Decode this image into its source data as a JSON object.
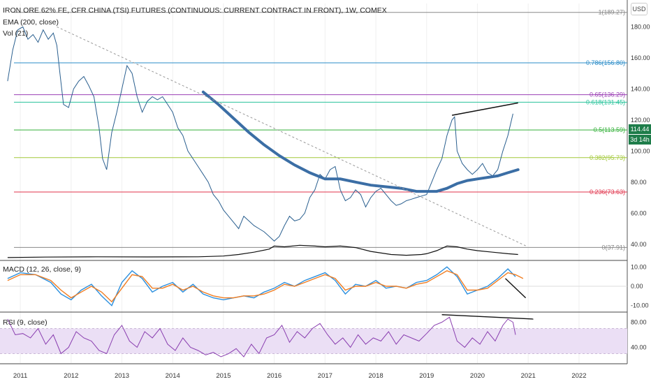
{
  "header": {
    "title": "IRON ORE 62% FE, CFR CHINA (TSI) FUTURES (CONTINUOUS: CURRENT CONTRACT IN FRONT), 1W, COMEX",
    "ema_label": "EMA (200, close)",
    "vol_label": "Vol (21)",
    "macd_label": "MACD (12, 26, close, 9)",
    "rsi_label": "RSI (9, close)",
    "currency": "USD"
  },
  "price_tag": {
    "value": "114.44",
    "countdown": "3d 14h",
    "color": "#1e7d4a"
  },
  "chart_data": [
    {
      "type": "line",
      "panel": "price",
      "ylim": [
        30,
        195
      ],
      "y_ticks": [
        "40.00",
        "60.00",
        "80.00",
        "100.00",
        "120.00",
        "140.00",
        "160.00",
        "180.00"
      ],
      "x_ticks": [
        "2011",
        "2012",
        "2013",
        "2014",
        "2015",
        "2016",
        "2017",
        "2018",
        "2019",
        "2020",
        "2021",
        "2022"
      ],
      "xlim": [
        2010.6,
        2022.95
      ],
      "fib_levels": [
        {
          "label": "1(189.27)",
          "value": 189.27,
          "color": "#888888"
        },
        {
          "label": "0.786(156.80)",
          "value": 156.8,
          "color": "#2a8cc8"
        },
        {
          "label": "0.65(136.29)",
          "value": 136.29,
          "color": "#9b3fb5"
        },
        {
          "label": "0.618(131.45)",
          "value": 131.45,
          "color": "#26c39a"
        },
        {
          "label": "0.5(113.59)",
          "value": 113.59,
          "color": "#34b13a"
        },
        {
          "label": "0.382(95.73)",
          "value": 95.73,
          "color": "#a3c93a"
        },
        {
          "label": "0.236(73.63)",
          "value": 73.63,
          "color": "#e0334b"
        },
        {
          "label": "0(37.91)",
          "value": 37.91,
          "color": "#888888"
        }
      ],
      "series": [
        {
          "type": "line",
          "color": "#2a5f8f",
          "x": [
            2010.75,
            2010.85,
            2010.95,
            2011.05,
            2011.15,
            2011.25,
            2011.35,
            2011.45,
            2011.55,
            2011.65,
            2011.72,
            2011.78,
            2011.85,
            2011.95,
            2012.05,
            2012.15,
            2012.25,
            2012.35,
            2012.45,
            2012.55,
            2012.62,
            2012.7,
            2012.8,
            2012.9,
            2013.0,
            2013.1,
            2013.2,
            2013.3,
            2013.4,
            2013.5,
            2013.6,
            2013.7,
            2013.8,
            2013.9,
            2014.0,
            2014.1,
            2014.2,
            2014.3,
            2014.4,
            2014.5,
            2014.6,
            2014.7,
            2014.8,
            2014.9,
            2015.0,
            2015.1,
            2015.2,
            2015.3,
            2015.4,
            2015.5,
            2015.6,
            2015.7,
            2015.8,
            2015.9,
            2016.0,
            2016.1,
            2016.2,
            2016.3,
            2016.4,
            2016.5,
            2016.6,
            2016.7,
            2016.8,
            2016.9,
            2017.0,
            2017.1,
            2017.2,
            2017.3,
            2017.4,
            2017.5,
            2017.6,
            2017.7,
            2017.8,
            2017.9,
            2018.0,
            2018.1,
            2018.2,
            2018.3,
            2018.4,
            2018.5,
            2018.6,
            2018.7,
            2018.8,
            2018.9,
            2019.0,
            2019.1,
            2019.2,
            2019.3,
            2019.4,
            2019.5,
            2019.55,
            2019.6,
            2019.7,
            2019.8,
            2019.9,
            2020.0,
            2020.1,
            2020.2,
            2020.3,
            2020.4,
            2020.5,
            2020.6,
            2020.7
          ],
          "y": [
            145,
            165,
            178,
            180,
            172,
            175,
            170,
            178,
            172,
            176,
            168,
            150,
            130,
            128,
            140,
            145,
            148,
            142,
            135,
            115,
            95,
            88,
            112,
            125,
            140,
            155,
            150,
            135,
            125,
            132,
            135,
            133,
            135,
            130,
            125,
            115,
            110,
            100,
            95,
            90,
            85,
            80,
            72,
            68,
            62,
            58,
            54,
            50,
            58,
            55,
            52,
            50,
            48,
            45,
            42,
            45,
            52,
            58,
            55,
            56,
            60,
            70,
            75,
            85,
            82,
            88,
            90,
            75,
            68,
            70,
            75,
            72,
            64,
            70,
            74,
            76,
            72,
            68,
            65,
            66,
            68,
            69,
            70,
            71,
            72,
            80,
            88,
            95,
            110,
            120,
            122,
            100,
            92,
            88,
            85,
            88,
            92,
            86,
            84,
            88,
            100,
            110,
            124
          ]
        },
        {
          "type": "ema",
          "label": "EMA (200, close)",
          "color": "#3b6ea5",
          "x": [
            2014.6,
            2014.9,
            2015.2,
            2015.5,
            2015.8,
            2016.1,
            2016.4,
            2016.7,
            2017.0,
            2017.3,
            2017.6,
            2017.9,
            2018.2,
            2018.5,
            2018.8,
            2019.0,
            2019.2,
            2019.4,
            2019.6,
            2019.8,
            2020.0,
            2020.2,
            2020.4,
            2020.6,
            2020.8
          ],
          "y": [
            138,
            130,
            121,
            112,
            104,
            97,
            91,
            86,
            82,
            82,
            80,
            78,
            77,
            76,
            74,
            74,
            74,
            76,
            79,
            81,
            82,
            83,
            84,
            86,
            88
          ]
        },
        {
          "type": "trendline",
          "color": "#999999",
          "dashed": true,
          "x": [
            2011.72,
            2020.95
          ],
          "y": [
            180,
            39
          ]
        },
        {
          "type": "trendline",
          "color": "#111111",
          "x": [
            2019.5,
            2020.8
          ],
          "y": [
            123,
            131
          ]
        },
        {
          "type": "volume_ma",
          "label": "Vol (21)",
          "color": "#111111",
          "x": [
            2010.75,
            2011.5,
            2012.5,
            2013.5,
            2014.5,
            2015.0,
            2015.3,
            2015.6,
            2015.9,
            2016.0,
            2016.2,
            2016.5,
            2016.8,
            2017.0,
            2017.3,
            2017.6,
            2017.9,
            2018.3,
            2018.6,
            2018.9,
            2019.0,
            2019.2,
            2019.4,
            2019.6,
            2019.8,
            2020.0,
            2020.3,
            2020.6,
            2020.8
          ],
          "y": [
            0.5,
            0.8,
            1.0,
            0.9,
            1.0,
            1.5,
            2.5,
            4.0,
            6.0,
            8.0,
            7.5,
            8.5,
            8.0,
            7.5,
            8.0,
            7.0,
            4.5,
            2.5,
            2.0,
            2.5,
            3.0,
            5.0,
            8.0,
            7.5,
            6.0,
            5.0,
            4.0,
            3.0,
            2.5
          ]
        }
      ]
    },
    {
      "type": "line",
      "panel": "macd",
      "title": "MACD (12, 26, close, 9)",
      "ylim": [
        -13,
        13
      ],
      "y_ticks": [
        "10.00",
        "0.00",
        "-10.00"
      ],
      "series": [
        {
          "type": "line",
          "color": "#2b8fde",
          "x": [
            2010.75,
            2011.0,
            2011.3,
            2011.6,
            2011.8,
            2012.0,
            2012.2,
            2012.4,
            2012.6,
            2012.8,
            2013.0,
            2013.2,
            2013.4,
            2013.6,
            2013.8,
            2014.0,
            2014.2,
            2014.4,
            2014.6,
            2014.8,
            2015.0,
            2015.2,
            2015.4,
            2015.6,
            2015.8,
            2016.0,
            2016.2,
            2016.4,
            2016.6,
            2016.8,
            2017.0,
            2017.2,
            2017.4,
            2017.6,
            2017.8,
            2018.0,
            2018.2,
            2018.4,
            2018.6,
            2018.8,
            2019.0,
            2019.2,
            2019.4,
            2019.6,
            2019.8,
            2020.0,
            2020.2,
            2020.4,
            2020.6,
            2020.75
          ],
          "y": [
            4,
            7,
            6,
            2,
            -4,
            -7,
            -2,
            1,
            -5,
            -10,
            2,
            8,
            4,
            -3,
            0,
            2,
            -3,
            1,
            -4,
            -6,
            -7,
            -6,
            -5,
            -6,
            -3,
            -1,
            2,
            0,
            3,
            5,
            7,
            3,
            -4,
            1,
            0,
            3,
            -1,
            0,
            -1,
            2,
            3,
            6,
            10,
            5,
            -4,
            -2,
            0,
            4,
            9,
            5
          ]
        },
        {
          "type": "line",
          "color": "#f07d22",
          "x": [
            2010.75,
            2011.0,
            2011.3,
            2011.6,
            2011.8,
            2012.0,
            2012.2,
            2012.4,
            2012.6,
            2012.8,
            2013.0,
            2013.2,
            2013.4,
            2013.6,
            2013.8,
            2014.0,
            2014.2,
            2014.4,
            2014.6,
            2014.8,
            2015.0,
            2015.2,
            2015.4,
            2015.6,
            2015.8,
            2016.0,
            2016.2,
            2016.4,
            2016.6,
            2016.8,
            2017.0,
            2017.2,
            2017.4,
            2017.6,
            2017.8,
            2018.0,
            2018.2,
            2018.4,
            2018.6,
            2018.8,
            2019.0,
            2019.2,
            2019.4,
            2019.6,
            2019.8,
            2020.0,
            2020.2,
            2020.4,
            2020.6,
            2020.75,
            2020.9
          ],
          "y": [
            3,
            6,
            6,
            3,
            -2,
            -6,
            -3,
            0,
            -3,
            -8,
            -1,
            6,
            5,
            -1,
            -1,
            1,
            -2,
            0,
            -3,
            -5,
            -6,
            -6,
            -5,
            -5,
            -4,
            -2,
            1,
            0,
            2,
            4,
            6,
            4,
            -2,
            0,
            0,
            2,
            0,
            0,
            -1,
            1,
            2,
            5,
            8,
            6,
            -2,
            -2,
            -1,
            3,
            7,
            6,
            4
          ]
        },
        {
          "type": "trendline",
          "color": "#111111",
          "x": [
            2020.55,
            2020.95
          ],
          "y": [
            4,
            -6
          ]
        }
      ]
    },
    {
      "type": "line",
      "panel": "rsi",
      "title": "RSI (9, close)",
      "ylim": [
        15,
        95
      ],
      "y_ticks": [
        "80.00",
        "40.00"
      ],
      "band": [
        30,
        70
      ],
      "series": [
        {
          "type": "line",
          "color": "#8a3fb0",
          "x": [
            2010.75,
            2010.9,
            2011.05,
            2011.2,
            2011.35,
            2011.5,
            2011.65,
            2011.8,
            2011.95,
            2012.1,
            2012.25,
            2012.4,
            2012.55,
            2012.7,
            2012.85,
            2013.0,
            2013.15,
            2013.3,
            2013.45,
            2013.6,
            2013.75,
            2013.9,
            2014.05,
            2014.2,
            2014.35,
            2014.5,
            2014.65,
            2014.8,
            2014.95,
            2015.1,
            2015.25,
            2015.4,
            2015.55,
            2015.7,
            2015.85,
            2016.0,
            2016.15,
            2016.3,
            2016.45,
            2016.6,
            2016.75,
            2016.9,
            2017.05,
            2017.2,
            2017.35,
            2017.5,
            2017.65,
            2017.8,
            2017.95,
            2018.1,
            2018.25,
            2018.4,
            2018.55,
            2018.7,
            2018.85,
            2019.0,
            2019.15,
            2019.3,
            2019.45,
            2019.6,
            2019.75,
            2019.9,
            2020.05,
            2020.2,
            2020.35,
            2020.5,
            2020.6,
            2020.7,
            2020.75
          ],
          "y": [
            85,
            60,
            62,
            55,
            70,
            45,
            60,
            30,
            40,
            65,
            55,
            50,
            35,
            30,
            60,
            75,
            50,
            40,
            65,
            55,
            70,
            45,
            35,
            55,
            40,
            35,
            28,
            32,
            25,
            30,
            38,
            25,
            45,
            30,
            55,
            60,
            75,
            48,
            65,
            55,
            70,
            78,
            60,
            45,
            55,
            40,
            60,
            45,
            55,
            50,
            65,
            45,
            60,
            55,
            50,
            62,
            75,
            80,
            88,
            50,
            40,
            55,
            45,
            65,
            50,
            75,
            85,
            80,
            60
          ]
        },
        {
          "type": "trendline",
          "color": "#111111",
          "x": [
            2019.3,
            2021.1
          ],
          "y": [
            92,
            85
          ]
        }
      ]
    }
  ]
}
